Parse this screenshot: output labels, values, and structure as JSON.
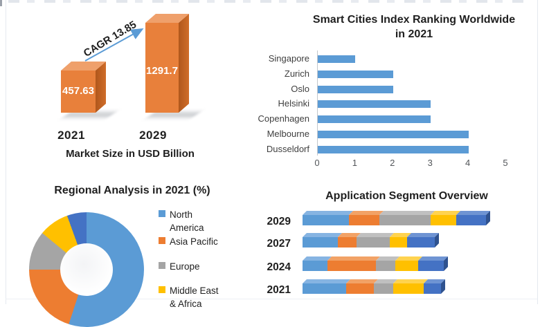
{
  "chart_data": [
    {
      "id": "market_size",
      "type": "bar",
      "title": "Market Size in USD Billion",
      "categories": [
        "2021",
        "2029"
      ],
      "values": [
        457.63,
        1291.7
      ],
      "value_labels": [
        "457.63",
        "1291.7"
      ],
      "annotation": "CAGR 13.85",
      "bar_color": "#E8803B",
      "arrow_color": "#5B9BD5",
      "layout_hint": "two 3D orange columns, value labels inside bars, diagonal CAGR arrow"
    },
    {
      "id": "smart_cities",
      "type": "bar",
      "orientation": "horizontal",
      "title": "Smart Cities Index Ranking Worldwide",
      "title_line2": "in 2021",
      "categories": [
        "Singapore",
        "Zurich",
        "Oslo",
        "Helsinki",
        "Copenhagen",
        "Melbourne",
        "Dusseldorf"
      ],
      "values": [
        1,
        2,
        2,
        3,
        3,
        4,
        4
      ],
      "xlim": [
        0,
        5
      ],
      "x_ticks": [
        "0",
        "1",
        "2",
        "3",
        "4",
        "5"
      ],
      "bar_color": "#5B9BD5",
      "grid": "off",
      "legend": "none"
    },
    {
      "id": "regional_analysis",
      "type": "pie",
      "subtype": "donut",
      "title": "Regional Analysis in 2021 (%)",
      "slices": [
        {
          "label": "North America",
          "value": 55,
          "color": "#5B9BD5"
        },
        {
          "label": "Asia Pacific",
          "value": 20,
          "color": "#ED7D31"
        },
        {
          "label": "Europe",
          "value": 11,
          "color": "#A5A5A5"
        },
        {
          "label": "Middle East & Africa",
          "value": 8.5,
          "color": "#FFC000"
        },
        {
          "label": "",
          "value": 5.5,
          "color": "#4472C4"
        }
      ],
      "legend_position": "right",
      "legend": [
        {
          "lines": [
            "North",
            "America"
          ],
          "color": "#5B9BD5"
        },
        {
          "lines": [
            "Asia Pacific"
          ],
          "color": "#ED7D31"
        },
        {
          "lines": [
            "Europe"
          ],
          "color": "#A5A5A5"
        },
        {
          "lines": [
            "Middle East",
            "& Africa"
          ],
          "color": "#FFC000"
        }
      ],
      "note": "chart and last legend entry clipped at bottom edge of image"
    },
    {
      "id": "application_segments",
      "type": "bar",
      "subtype": "stacked-horizontal-3d",
      "title": "Application Segment Overview",
      "categories": [
        "2029",
        "2027",
        "2024",
        "2021"
      ],
      "unit": "relative width",
      "series": [
        {
          "name": "segment-blue",
          "color": "#5B9BD5",
          "top": "#86B4E2",
          "side": "#3C6E9F",
          "values": [
            67,
            51,
            36,
            63
          ]
        },
        {
          "name": "segment-orange",
          "color": "#ED7D31",
          "top": "#F2A266",
          "side": "#AE5A21",
          "values": [
            44,
            27,
            70,
            40
          ]
        },
        {
          "name": "segment-gray",
          "color": "#A5A5A5",
          "top": "#C0C0C0",
          "side": "#7B7B7B",
          "values": [
            74,
            48,
            28,
            28
          ]
        },
        {
          "name": "segment-yellow",
          "color": "#FFC000",
          "top": "#FFD34F",
          "side": "#BF9000",
          "values": [
            37,
            25,
            33,
            44
          ]
        },
        {
          "name": "segment-darkblue",
          "color": "#4472C4",
          "top": "#6F94D3",
          "side": "#2F528F",
          "values": [
            43,
            40,
            37,
            25
          ]
        }
      ],
      "legend": "none"
    }
  ]
}
